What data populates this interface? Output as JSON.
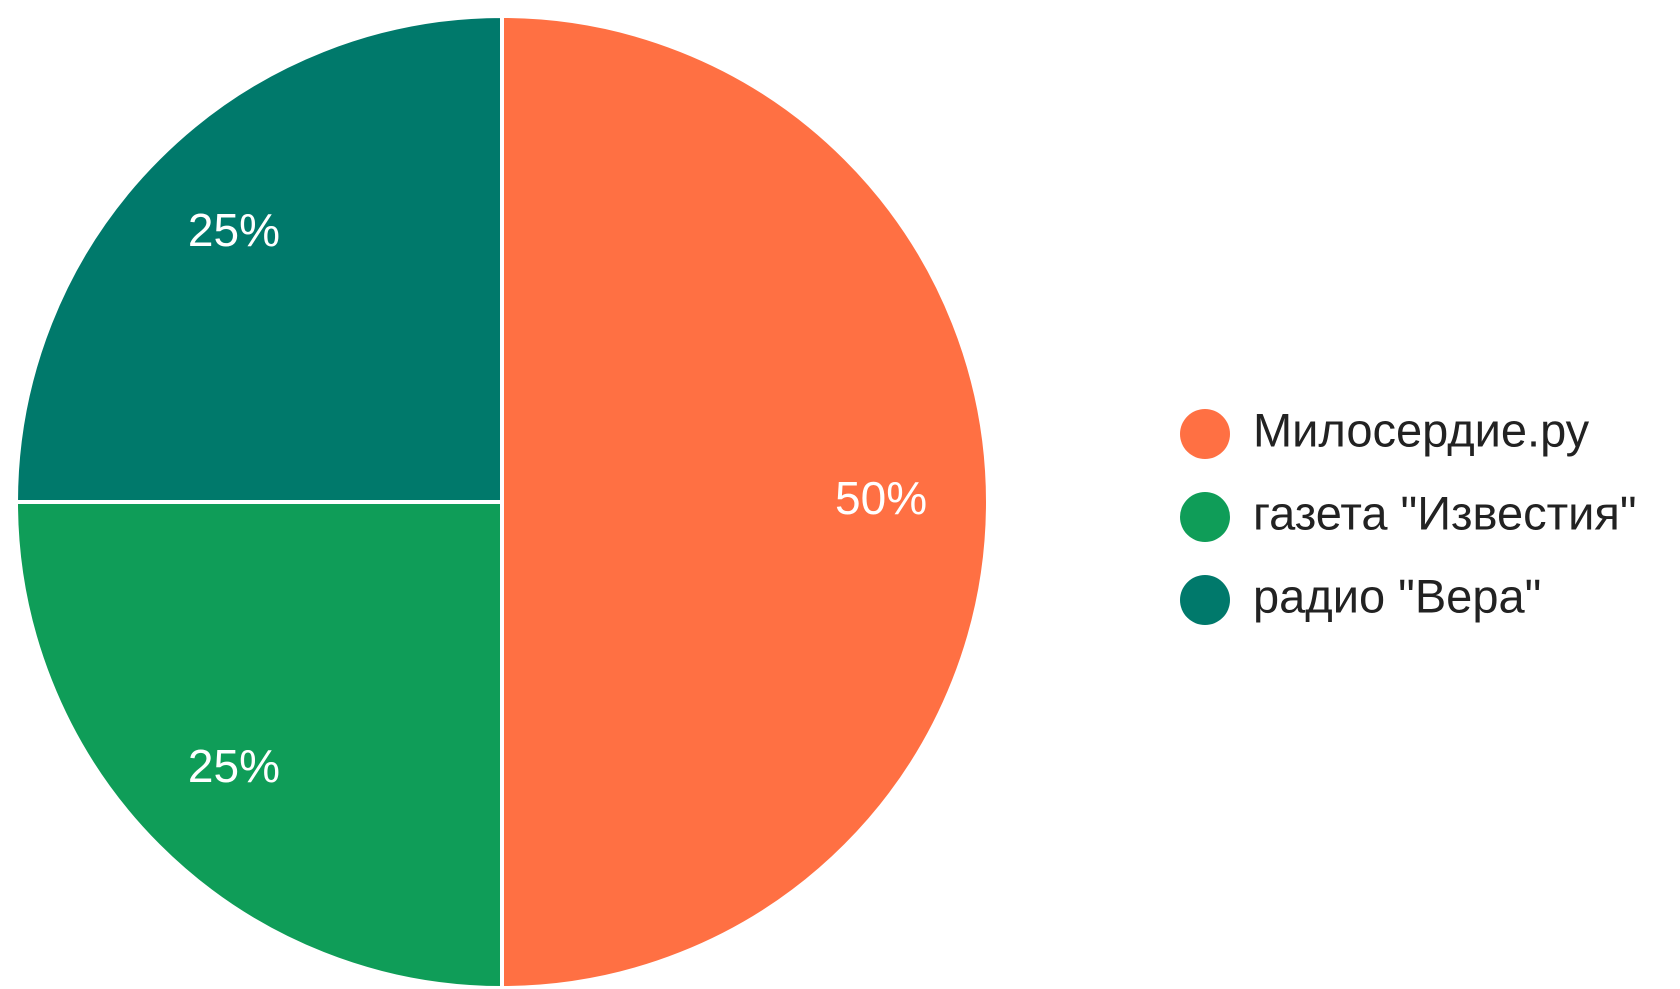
{
  "chart_data": {
    "type": "pie",
    "categories": [
      "Милосердие.ру",
      "газета \"Известия\"",
      "радио \"Вера\""
    ],
    "values": [
      50,
      25,
      25
    ],
    "value_labels": [
      "50%",
      "25%",
      "25%"
    ],
    "colors": [
      "#ff7043",
      "#0f9d58",
      "#00796b"
    ],
    "legend": "right"
  }
}
